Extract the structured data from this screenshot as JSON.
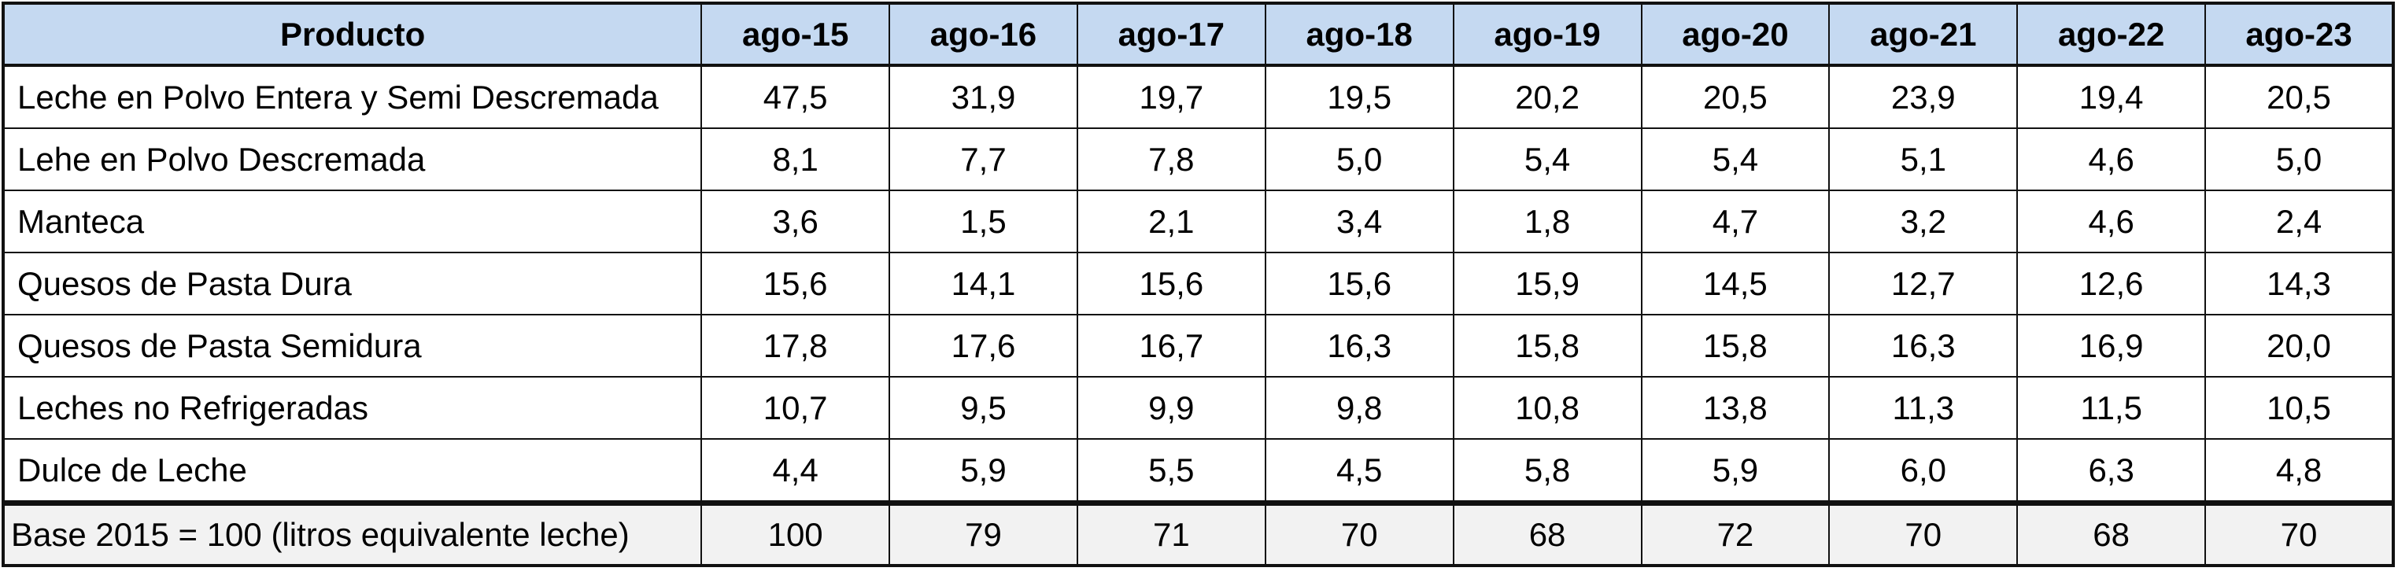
{
  "table": {
    "header": {
      "product_label": "Producto",
      "years": [
        "ago-15",
        "ago-16",
        "ago-17",
        "ago-18",
        "ago-19",
        "ago-20",
        "ago-21",
        "ago-22",
        "ago-23"
      ]
    },
    "rows": [
      {
        "product": "Leche en Polvo Entera y Semi Descremada",
        "values": [
          "47,5",
          "31,9",
          "19,7",
          "19,5",
          "20,2",
          "20,5",
          "23,9",
          "19,4",
          "20,5"
        ]
      },
      {
        "product": "Lehe en Polvo Descremada",
        "values": [
          "8,1",
          "7,7",
          "7,8",
          "5,0",
          "5,4",
          "5,4",
          "5,1",
          "4,6",
          "5,0"
        ]
      },
      {
        "product": "Manteca",
        "values": [
          "3,6",
          "1,5",
          "2,1",
          "3,4",
          "1,8",
          "4,7",
          "3,2",
          "4,6",
          "2,4"
        ]
      },
      {
        "product": "Quesos de Pasta Dura",
        "values": [
          "15,6",
          "14,1",
          "15,6",
          "15,6",
          "15,9",
          "14,5",
          "12,7",
          "12,6",
          "14,3"
        ]
      },
      {
        "product": "Quesos de Pasta Semidura",
        "values": [
          "17,8",
          "17,6",
          "16,7",
          "16,3",
          "15,8",
          "15,8",
          "16,3",
          "16,9",
          "20,0"
        ]
      },
      {
        "product": "Leches no Refrigeradas",
        "values": [
          "10,7",
          "9,5",
          "9,9",
          "9,8",
          "10,8",
          "13,8",
          "11,3",
          "11,5",
          "10,5"
        ]
      },
      {
        "product": "Dulce de Leche",
        "values": [
          "4,4",
          "5,9",
          "5,5",
          "4,5",
          "5,8",
          "5,9",
          "6,0",
          "6,3",
          "4,8"
        ]
      }
    ],
    "base_row": {
      "label": "Base 2015 = 100 (litros equivalente leche)",
      "values": [
        "100",
        "79",
        "71",
        "70",
        "68",
        "72",
        "70",
        "68",
        "70"
      ]
    }
  }
}
